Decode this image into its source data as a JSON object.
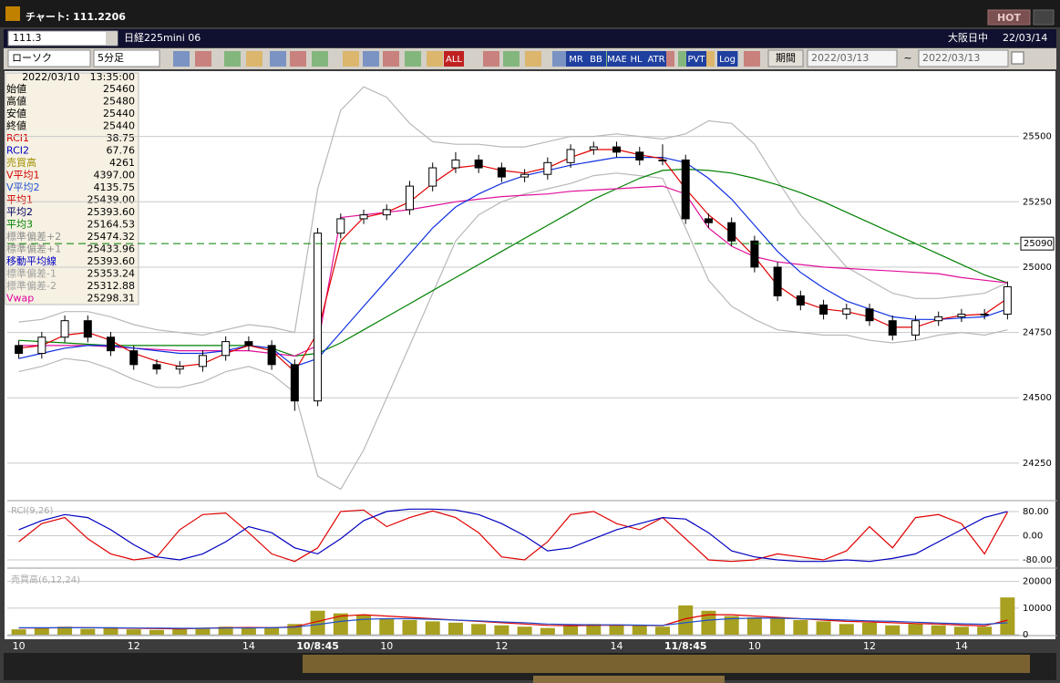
{
  "window": {
    "title": "チャート: 111.2206",
    "hot": "HOT",
    "symbol_code": "111.3",
    "symbol_name": "日経225mini 06",
    "session": "大阪日中",
    "date": "22/03/14",
    "chart_style": "ローソク",
    "interval": "5分足",
    "period_button": "期間",
    "date_from": "2022/03/13",
    "date_sep": "~",
    "date_to": "2022/03/13",
    "toolbar_labels": [
      "ALL",
      "MR",
      "BB",
      "MAE",
      "HL",
      "ATR",
      "PVT",
      "Log"
    ]
  },
  "info_panel": {
    "datetime": "2022/03/10　13:35:00",
    "rows": [
      {
        "label": "始値",
        "value": "25460",
        "color": "#000000"
      },
      {
        "label": "高値",
        "value": "25480",
        "color": "#000000"
      },
      {
        "label": "安値",
        "value": "25440",
        "color": "#000000"
      },
      {
        "label": "終値",
        "value": "25440",
        "color": "#000000"
      },
      {
        "label": "RCI1",
        "value": "38.75",
        "color": "#d00000"
      },
      {
        "label": "RCI2",
        "value": "67.76",
        "color": "#0000c0"
      },
      {
        "label": "売買高",
        "value": "4261",
        "color": "#a09000"
      },
      {
        "label": "V平均1",
        "value": "4397.00",
        "color": "#d00000"
      },
      {
        "label": "V平均2",
        "value": "4135.75",
        "color": "#2050d0"
      },
      {
        "label": "平均1",
        "value": "25439.00",
        "color": "#d00000"
      },
      {
        "label": "平均2",
        "value": "25393.60",
        "color": "#000060"
      },
      {
        "label": "平均3",
        "value": "25164.53",
        "color": "#008000"
      },
      {
        "label": "標準偏差+2",
        "value": "25474.32",
        "color": "#909090"
      },
      {
        "label": "標準偏差+1",
        "value": "25433.96",
        "color": "#909090"
      },
      {
        "label": "移動平均線",
        "value": "25393.60",
        "color": "#0000c0"
      },
      {
        "label": "標準偏差-1",
        "value": "25353.24",
        "color": "#a0a0a0"
      },
      {
        "label": "標準偏差-2",
        "value": "25312.88",
        "color": "#a0a0a0"
      },
      {
        "label": "Vwap",
        "value": "25298.31",
        "color": "#e000a0"
      }
    ]
  },
  "chart_data": [
    {
      "type": "candlestick",
      "up_color": "#ffffff",
      "down_color": "#000000",
      "open": [
        24700,
        24670,
        24732,
        24795,
        24732,
        24680,
        24627,
        24610,
        24620,
        24662,
        24715,
        24700,
        24627,
        24488,
        25130,
        25185,
        25200,
        25220,
        25310,
        25380,
        25410,
        25380,
        25345,
        25355,
        25400,
        25450,
        25460,
        25440,
        25410,
        25410,
        25185,
        25170,
        25100,
        25000,
        24890,
        24855,
        24820,
        24840,
        24795,
        24740,
        24795,
        24810,
        24820,
        24820
      ],
      "high": [
        24720,
        24752,
        24815,
        24815,
        24752,
        24700,
        24647,
        24640,
        24682,
        24735,
        24735,
        24720,
        24647,
        25150,
        25205,
        25220,
        25240,
        25330,
        25400,
        25440,
        25430,
        25400,
        25375,
        25420,
        25470,
        25480,
        25480,
        25460,
        25470,
        25430,
        25205,
        25190,
        25120,
        25020,
        24910,
        24875,
        24860,
        24860,
        24815,
        24815,
        24830,
        24840,
        24840,
        24945
      ],
      "low": [
        24650,
        24650,
        24712,
        24712,
        24660,
        24607,
        24590,
        24590,
        24600,
        24642,
        24680,
        24607,
        24450,
        24468,
        25110,
        25165,
        25180,
        25200,
        25290,
        25360,
        25360,
        25325,
        25325,
        25335,
        25380,
        25430,
        25420,
        25390,
        25390,
        25165,
        25150,
        25080,
        24980,
        24870,
        24835,
        24800,
        24800,
        24775,
        24720,
        24720,
        24775,
        24790,
        24800,
        24800
      ],
      "close": [
        24670,
        24732,
        24795,
        24732,
        24680,
        24627,
        24610,
        24620,
        24662,
        24715,
        24700,
        24627,
        24488,
        25130,
        25185,
        25200,
        25220,
        25310,
        25380,
        25410,
        25380,
        25345,
        25355,
        25400,
        25450,
        25460,
        25440,
        25410,
        25410,
        25185,
        25170,
        25100,
        25000,
        24890,
        24855,
        24820,
        24840,
        24795,
        24740,
        24795,
        24810,
        24820,
        24820,
        24925
      ],
      "series": [
        {
          "color": "#b8b8b8",
          "values": [
            24790,
            24800,
            24830,
            24830,
            24810,
            24780,
            24760,
            24750,
            24740,
            24760,
            24780,
            24770,
            24750,
            25300,
            25600,
            25690,
            25650,
            25550,
            25480,
            25470,
            25470,
            25460,
            25460,
            25480,
            25500,
            25500,
            25510,
            25500,
            25490,
            25510,
            25560,
            25550,
            25470,
            25330,
            25200,
            25100,
            25000,
            24950,
            24900,
            24880,
            24880,
            24890,
            24900,
            24940
          ]
        },
        {
          "color": "#b8b8b8",
          "values": [
            24600,
            24620,
            24650,
            24640,
            24610,
            24570,
            24540,
            24540,
            24560,
            24600,
            24620,
            24590,
            24520,
            24200,
            24150,
            24300,
            24500,
            24700,
            24900,
            25100,
            25200,
            25250,
            25280,
            25300,
            25320,
            25350,
            25360,
            25350,
            25340,
            25150,
            24950,
            24850,
            24800,
            24760,
            24750,
            24740,
            24740,
            24720,
            24710,
            24720,
            24740,
            24750,
            24740,
            24760
          ]
        },
        {
          "color": "#008000",
          "values": [
            24720,
            24715,
            24710,
            24705,
            24700,
            24700,
            24700,
            24700,
            24700,
            24700,
            24700,
            24690,
            24660,
            24670,
            24710,
            24760,
            24810,
            24860,
            24910,
            24960,
            25010,
            25060,
            25110,
            25160,
            25210,
            25260,
            25300,
            25340,
            25370,
            25375,
            25370,
            25360,
            25340,
            25315,
            25285,
            25250,
            25210,
            25170,
            25130,
            25090,
            25050,
            25010,
            24970,
            24940
          ]
        },
        {
          "color": "#e0109a",
          "values": [
            24700,
            24700,
            24700,
            24700,
            24695,
            24690,
            24685,
            24680,
            24680,
            24680,
            24680,
            24670,
            24660,
            24700,
            25190,
            25200,
            25210,
            25220,
            25235,
            25250,
            25260,
            25270,
            25275,
            25280,
            25290,
            25295,
            25300,
            25305,
            25310,
            25280,
            25150,
            25080,
            25040,
            25020,
            25010,
            25000,
            24995,
            24990,
            24985,
            24980,
            24975,
            24960,
            24950,
            24940
          ]
        },
        {
          "color": "#1030e0",
          "values": [
            24650,
            24670,
            24690,
            24700,
            24700,
            24690,
            24680,
            24670,
            24670,
            24680,
            24700,
            24690,
            24620,
            24650,
            24750,
            24850,
            24950,
            25050,
            25150,
            25230,
            25280,
            25320,
            25350,
            25370,
            25390,
            25405,
            25420,
            25420,
            25420,
            25400,
            25340,
            25260,
            25160,
            25060,
            24980,
            24920,
            24870,
            24840,
            24810,
            24800,
            24800,
            24805,
            24810,
            24840
          ]
        },
        {
          "color": "#e00000",
          "values": [
            24690,
            24700,
            24740,
            24750,
            24720,
            24670,
            24640,
            24620,
            24630,
            24670,
            24700,
            24680,
            24600,
            24750,
            25100,
            25190,
            25210,
            25250,
            25320,
            25380,
            25390,
            25370,
            25360,
            25380,
            25420,
            25450,
            25450,
            25430,
            25415,
            25300,
            25200,
            25130,
            25040,
            24930,
            24870,
            24840,
            24830,
            24810,
            24770,
            24770,
            24800,
            24815,
            24820,
            24880
          ]
        }
      ],
      "hline": 25090,
      "hline_color": "#008000",
      "ylim": [
        24110,
        25750
      ],
      "yticks": [
        24250,
        24500,
        24750,
        25000,
        25250,
        25500
      ],
      "grid": true
    },
    {
      "type": "line",
      "title": "RCI(9,26)",
      "series": [
        {
          "color": "#e00000",
          "values": [
            -20,
            40,
            60,
            -10,
            -60,
            -80,
            -70,
            20,
            70,
            75,
            10,
            -60,
            -85,
            -40,
            80,
            85,
            30,
            60,
            82,
            60,
            10,
            -70,
            -80,
            -20,
            70,
            80,
            40,
            20,
            60,
            -10,
            -80,
            -85,
            -80,
            -60,
            -70,
            -80,
            -50,
            30,
            -40,
            60,
            70,
            40,
            -60,
            78
          ]
        },
        {
          "color": "#0000c0",
          "values": [
            20,
            50,
            70,
            60,
            20,
            -30,
            -70,
            -80,
            -60,
            -20,
            30,
            10,
            -40,
            -60,
            -10,
            50,
            80,
            88,
            88,
            85,
            70,
            40,
            0,
            -50,
            -40,
            -10,
            20,
            40,
            60,
            55,
            10,
            -50,
            -70,
            -80,
            -85,
            -85,
            -80,
            -85,
            -75,
            -60,
            -20,
            20,
            60,
            80
          ]
        }
      ],
      "ylim": [
        -104,
        113
      ],
      "yticks": [
        {
          "value": 80,
          "label": "80.00"
        },
        {
          "value": 0,
          "label": "0.00"
        },
        {
          "value": -80,
          "label": "-80.00"
        }
      ],
      "grid": true
    },
    {
      "type": "bar",
      "title": "売買高(6,12,24)",
      "color": "#a8a020",
      "categories": [
        "10",
        null,
        null,
        null,
        null,
        "12",
        null,
        null,
        null,
        null,
        "14",
        null,
        null,
        "10/8:45",
        null,
        null,
        "10",
        null,
        null,
        null,
        null,
        "12",
        null,
        null,
        null,
        null,
        "14",
        null,
        null,
        "11/8:45",
        null,
        null,
        "10",
        null,
        null,
        null,
        null,
        "12",
        null,
        null,
        null,
        "14",
        null,
        null
      ],
      "values": [
        2000,
        2500,
        3000,
        2200,
        2800,
        2000,
        1800,
        2200,
        2600,
        3000,
        2400,
        2800,
        4000,
        9000,
        8000,
        7500,
        6000,
        5500,
        5000,
        4500,
        4000,
        3500,
        3000,
        2500,
        3500,
        4000,
        3800,
        3500,
        3000,
        11000,
        9000,
        7000,
        6500,
        6000,
        5500,
        5000,
        4000,
        4500,
        3500,
        4000,
        3500,
        3000,
        3000,
        14000
      ],
      "series": [
        {
          "color": "#e00000",
          "values": [
            2500,
            2500,
            2600,
            2600,
            2500,
            2400,
            2300,
            2200,
            2400,
            2600,
            2700,
            2600,
            3000,
            5000,
            7000,
            7500,
            7000,
            6500,
            6000,
            5500,
            5000,
            4500,
            4000,
            3500,
            3400,
            3500,
            3600,
            3500,
            3400,
            6000,
            7500,
            7500,
            7000,
            6500,
            6000,
            5500,
            5000,
            4800,
            4500,
            4200,
            4000,
            3600,
            3300,
            5500
          ]
        },
        {
          "color": "#2050d0",
          "values": [
            2600,
            2600,
            2600,
            2600,
            2600,
            2500,
            2500,
            2400,
            2400,
            2500,
            2500,
            2600,
            2800,
            3800,
            5000,
            5800,
            6000,
            6000,
            5800,
            5500,
            5200,
            4800,
            4500,
            4000,
            3800,
            3700,
            3700,
            3600,
            3500,
            4500,
            5500,
            6000,
            6200,
            6200,
            6000,
            5800,
            5500,
            5200,
            5000,
            4700,
            4400,
            4100,
            3900,
            4500
          ]
        }
      ],
      "ylim": [
        0,
        24000
      ],
      "yticks": [
        0,
        10000,
        20000
      ],
      "grid": true
    }
  ]
}
